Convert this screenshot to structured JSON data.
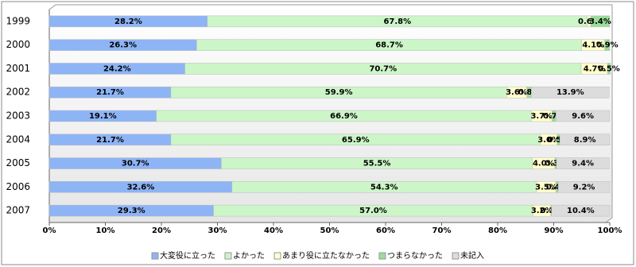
{
  "chart_data": {
    "type": "stacked-bar-horizontal",
    "categories": [
      "1999",
      "2000",
      "2001",
      "2002",
      "2003",
      "2004",
      "2005",
      "2006",
      "2007"
    ],
    "series": [
      {
        "name": "大変役に立った",
        "color": "#8db4f5",
        "values": [
          28.2,
          26.3,
          24.2,
          21.7,
          19.1,
          21.7,
          30.7,
          32.6,
          29.3
        ],
        "value_labels": [
          "28.2%",
          "26.3%",
          "24.2%",
          "21.7%",
          "19.1%",
          "21.7%",
          "30.7%",
          "32.6%",
          "29.3%"
        ]
      },
      {
        "name": "よかった",
        "color": "#ccf5c8",
        "values": [
          67.8,
          68.7,
          70.7,
          59.9,
          66.9,
          65.9,
          55.5,
          54.3,
          57.0
        ],
        "value_labels": [
          "67.8%",
          "68.7%",
          "70.7%",
          "59.9%",
          "66.9%",
          "65.9%",
          "55.5%",
          "54.3%",
          "57.0%"
        ]
      },
      {
        "name": "あまり役に立たなかった",
        "color": "#ffffcc",
        "values": [
          0.6,
          4.1,
          4.7,
          3.6,
          3.7,
          3.0,
          4.0,
          3.5,
          3.2
        ],
        "value_labels": [
          "0.6%",
          "4.1%",
          "4.7%",
          "3.6%",
          "3.7%",
          "3.0%",
          "4.0%",
          "3.5%",
          "3.2%"
        ]
      },
      {
        "name": "つまらなかった",
        "color": "#99dd99",
        "values": [
          3.4,
          0.9,
          0.5,
          0.8,
          0.7,
          0.5,
          0.3,
          0.4,
          0.1
        ],
        "value_labels": [
          "3.4%",
          "0.9%",
          "0.5%",
          "0.8%",
          "0.7%",
          "0.5%",
          "0.3%",
          "0.4%",
          "0.1%"
        ]
      },
      {
        "name": "未記入",
        "color": "#dcdcdc",
        "values": [
          null,
          null,
          null,
          13.9,
          9.6,
          8.9,
          9.4,
          9.2,
          10.4
        ],
        "value_labels": [
          null,
          null,
          null,
          "13.9%",
          "9.6%",
          "8.9%",
          "9.4%",
          "9.2%",
          "10.4%"
        ]
      }
    ],
    "xlim": [
      0,
      100
    ],
    "xticks": [
      {
        "value": 0,
        "label": "0%"
      },
      {
        "value": 10,
        "label": "10%"
      },
      {
        "value": 20,
        "label": "20%"
      },
      {
        "value": 30,
        "label": "30%"
      },
      {
        "value": 40,
        "label": "40%"
      },
      {
        "value": 50,
        "label": "50%"
      },
      {
        "value": 60,
        "label": "60%"
      },
      {
        "value": 70,
        "label": "70%"
      },
      {
        "value": 80,
        "label": "80%"
      },
      {
        "value": 90,
        "label": "90%"
      },
      {
        "value": 100,
        "label": "100%"
      }
    ],
    "legend": "bottom"
  }
}
